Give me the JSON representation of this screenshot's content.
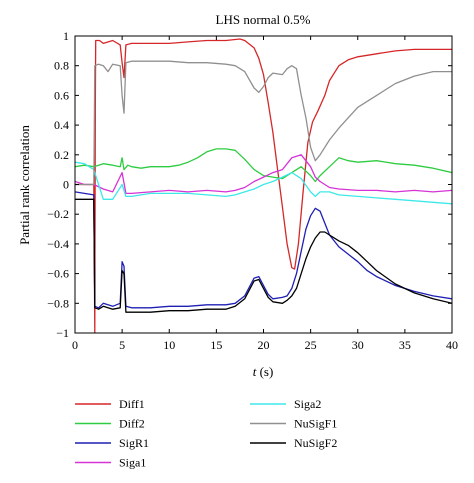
{
  "chart_data": {
    "type": "line",
    "title": "LHS normal 0.5%",
    "xlabel_italic": "t",
    "xlabel_unit": " (s)",
    "ylabel": "Partial rank correlation",
    "xlim": [
      0,
      40
    ],
    "ylim": [
      -1,
      1
    ],
    "xticks": [
      0,
      5,
      10,
      15,
      20,
      25,
      30,
      35,
      40
    ],
    "yticks": [
      -1,
      -0.8,
      -0.6,
      -0.4,
      -0.2,
      0,
      0.2,
      0.4,
      0.6,
      0.8,
      1
    ],
    "xtick_labels": [
      "0",
      "5",
      "10",
      "15",
      "20",
      "25",
      "30",
      "35",
      "40"
    ],
    "ytick_labels": [
      "−1",
      "−0.8",
      "−0.6",
      "−0.4",
      "−0.2",
      "0",
      "0.2",
      "0.4",
      "0.6",
      "0.8",
      "1"
    ],
    "grid": false,
    "legend_placement": "below",
    "series": [
      {
        "name": "Diff1",
        "color": "#d62728",
        "points": [
          [
            0,
            0
          ],
          [
            2,
            0
          ],
          [
            2.1,
            -1
          ],
          [
            2.15,
            0.5
          ],
          [
            2.2,
            0.97
          ],
          [
            2.6,
            0.97
          ],
          [
            3,
            0.95
          ],
          [
            4,
            0.97
          ],
          [
            4.8,
            0.94
          ],
          [
            5,
            0.82
          ],
          [
            5.2,
            0.72
          ],
          [
            5.4,
            0.94
          ],
          [
            6,
            0.95
          ],
          [
            8,
            0.95
          ],
          [
            10,
            0.95
          ],
          [
            12,
            0.96
          ],
          [
            14,
            0.97
          ],
          [
            16,
            0.97
          ],
          [
            17.5,
            0.98
          ],
          [
            18,
            0.97
          ],
          [
            19,
            0.92
          ],
          [
            19.5,
            0.85
          ],
          [
            20,
            0.74
          ],
          [
            20.5,
            0.55
          ],
          [
            21,
            0.35
          ],
          [
            21.5,
            0.1
          ],
          [
            22,
            -0.15
          ],
          [
            22.5,
            -0.4
          ],
          [
            23,
            -0.56
          ],
          [
            23.3,
            -0.57
          ],
          [
            23.7,
            -0.4
          ],
          [
            24.2,
            -0.05
          ],
          [
            24.7,
            0.28
          ],
          [
            25.2,
            0.42
          ],
          [
            25.8,
            0.5
          ],
          [
            26.5,
            0.6
          ],
          [
            27,
            0.7
          ],
          [
            28,
            0.8
          ],
          [
            29,
            0.84
          ],
          [
            30,
            0.86
          ],
          [
            32,
            0.88
          ],
          [
            34,
            0.9
          ],
          [
            36,
            0.91
          ],
          [
            38,
            0.91
          ],
          [
            40,
            0.91
          ]
        ]
      },
      {
        "name": "Diff2",
        "color": "#2ecc40",
        "points": [
          [
            0,
            0.12
          ],
          [
            1,
            0.13
          ],
          [
            2,
            0.12
          ],
          [
            2.5,
            0.13
          ],
          [
            3,
            0.14
          ],
          [
            4,
            0.13
          ],
          [
            4.8,
            0.12
          ],
          [
            5,
            0.18
          ],
          [
            5.2,
            0.1
          ],
          [
            5.6,
            0.13
          ],
          [
            6,
            0.12
          ],
          [
            7,
            0.11
          ],
          [
            8,
            0.12
          ],
          [
            9,
            0.12
          ],
          [
            10,
            0.12
          ],
          [
            11,
            0.13
          ],
          [
            12,
            0.15
          ],
          [
            13,
            0.18
          ],
          [
            14,
            0.22
          ],
          [
            15,
            0.24
          ],
          [
            16,
            0.24
          ],
          [
            17,
            0.23
          ],
          [
            18,
            0.17
          ],
          [
            19,
            0.1
          ],
          [
            20,
            0.06
          ],
          [
            21,
            0.05
          ],
          [
            22,
            0.04
          ],
          [
            23,
            0.08
          ],
          [
            24,
            0.12
          ],
          [
            25,
            0.06
          ],
          [
            25.5,
            0.02
          ],
          [
            26,
            0.06
          ],
          [
            27,
            0.12
          ],
          [
            28,
            0.18
          ],
          [
            29,
            0.16
          ],
          [
            30,
            0.15
          ],
          [
            32,
            0.16
          ],
          [
            34,
            0.14
          ],
          [
            36,
            0.13
          ],
          [
            38,
            0.11
          ],
          [
            40,
            0.08
          ]
        ]
      },
      {
        "name": "SigR1",
        "color": "#1f1fb4",
        "points": [
          [
            0,
            -0.05
          ],
          [
            1,
            -0.06
          ],
          [
            2,
            -0.07
          ],
          [
            2.1,
            -0.82
          ],
          [
            2.5,
            -0.83
          ],
          [
            3,
            -0.8
          ],
          [
            4,
            -0.82
          ],
          [
            4.8,
            -0.8
          ],
          [
            5,
            -0.52
          ],
          [
            5.2,
            -0.55
          ],
          [
            5.4,
            -0.82
          ],
          [
            6,
            -0.83
          ],
          [
            8,
            -0.83
          ],
          [
            10,
            -0.82
          ],
          [
            12,
            -0.82
          ],
          [
            14,
            -0.81
          ],
          [
            16,
            -0.81
          ],
          [
            17,
            -0.8
          ],
          [
            18,
            -0.75
          ],
          [
            19,
            -0.63
          ],
          [
            19.5,
            -0.62
          ],
          [
            20,
            -0.68
          ],
          [
            20.5,
            -0.74
          ],
          [
            21,
            -0.77
          ],
          [
            22,
            -0.76
          ],
          [
            22.5,
            -0.75
          ],
          [
            23,
            -0.7
          ],
          [
            23.5,
            -0.6
          ],
          [
            24,
            -0.45
          ],
          [
            24.5,
            -0.3
          ],
          [
            25,
            -0.21
          ],
          [
            25.5,
            -0.16
          ],
          [
            26,
            -0.18
          ],
          [
            26.5,
            -0.26
          ],
          [
            27,
            -0.34
          ],
          [
            28,
            -0.42
          ],
          [
            29,
            -0.47
          ],
          [
            30,
            -0.52
          ],
          [
            31,
            -0.58
          ],
          [
            32,
            -0.62
          ],
          [
            34,
            -0.68
          ],
          [
            36,
            -0.72
          ],
          [
            38,
            -0.75
          ],
          [
            40,
            -0.77
          ]
        ]
      },
      {
        "name": "Siga1",
        "color": "#d633d6",
        "points": [
          [
            0,
            0.02
          ],
          [
            1,
            0.0
          ],
          [
            2,
            0.0
          ],
          [
            3,
            -0.03
          ],
          [
            4,
            -0.05
          ],
          [
            5,
            0.08
          ],
          [
            5.4,
            -0.06
          ],
          [
            6,
            -0.06
          ],
          [
            8,
            -0.05
          ],
          [
            10,
            -0.04
          ],
          [
            12,
            -0.05
          ],
          [
            14,
            -0.04
          ],
          [
            16,
            -0.05
          ],
          [
            17,
            -0.04
          ],
          [
            18,
            -0.02
          ],
          [
            19,
            0.02
          ],
          [
            20,
            0.05
          ],
          [
            21,
            0.08
          ],
          [
            22,
            0.1
          ],
          [
            23,
            0.18
          ],
          [
            24,
            0.2
          ],
          [
            25,
            0.12
          ],
          [
            25.5,
            0.05
          ],
          [
            26,
            0.02
          ],
          [
            27,
            -0.02
          ],
          [
            28,
            -0.03
          ],
          [
            30,
            -0.04
          ],
          [
            32,
            -0.04
          ],
          [
            34,
            -0.05
          ],
          [
            36,
            -0.04
          ],
          [
            38,
            -0.05
          ],
          [
            40,
            -0.04
          ]
        ]
      },
      {
        "name": "Siga2",
        "color": "#3ee8e8",
        "points": [
          [
            0,
            0.15
          ],
          [
            1,
            0.14
          ],
          [
            2,
            0.1
          ],
          [
            3,
            -0.1
          ],
          [
            4,
            -0.1
          ],
          [
            5,
            0.0
          ],
          [
            5.4,
            -0.08
          ],
          [
            6,
            -0.08
          ],
          [
            8,
            -0.06
          ],
          [
            10,
            -0.06
          ],
          [
            12,
            -0.06
          ],
          [
            14,
            -0.07
          ],
          [
            16,
            -0.08
          ],
          [
            17,
            -0.07
          ],
          [
            18,
            -0.05
          ],
          [
            19,
            -0.03
          ],
          [
            20,
            0.0
          ],
          [
            21,
            0.02
          ],
          [
            22,
            0.05
          ],
          [
            23,
            0.08
          ],
          [
            24,
            0.04
          ],
          [
            25,
            -0.05
          ],
          [
            25.5,
            -0.08
          ],
          [
            26,
            -0.05
          ],
          [
            27,
            -0.05
          ],
          [
            28,
            -0.07
          ],
          [
            30,
            -0.08
          ],
          [
            32,
            -0.09
          ],
          [
            34,
            -0.1
          ],
          [
            36,
            -0.11
          ],
          [
            38,
            -0.12
          ],
          [
            40,
            -0.13
          ]
        ]
      },
      {
        "name": "NuSigF1",
        "color": "#909090",
        "points": [
          [
            0,
            0.0
          ],
          [
            2,
            0.0
          ],
          [
            2.1,
            0.8
          ],
          [
            2.5,
            0.81
          ],
          [
            3,
            0.8
          ],
          [
            3.5,
            0.76
          ],
          [
            4,
            0.81
          ],
          [
            4.8,
            0.8
          ],
          [
            5,
            0.6
          ],
          [
            5.2,
            0.48
          ],
          [
            5.4,
            0.82
          ],
          [
            6,
            0.83
          ],
          [
            8,
            0.83
          ],
          [
            10,
            0.83
          ],
          [
            12,
            0.82
          ],
          [
            14,
            0.82
          ],
          [
            16,
            0.81
          ],
          [
            17,
            0.8
          ],
          [
            18,
            0.76
          ],
          [
            19,
            0.65
          ],
          [
            19.5,
            0.62
          ],
          [
            20,
            0.66
          ],
          [
            20.5,
            0.72
          ],
          [
            21,
            0.75
          ],
          [
            22,
            0.74
          ],
          [
            22.5,
            0.78
          ],
          [
            23,
            0.8
          ],
          [
            23.5,
            0.78
          ],
          [
            24,
            0.6
          ],
          [
            24.5,
            0.45
          ],
          [
            25,
            0.25
          ],
          [
            25.5,
            0.16
          ],
          [
            26,
            0.2
          ],
          [
            27,
            0.3
          ],
          [
            28,
            0.38
          ],
          [
            29,
            0.45
          ],
          [
            30,
            0.52
          ],
          [
            32,
            0.6
          ],
          [
            34,
            0.68
          ],
          [
            36,
            0.73
          ],
          [
            38,
            0.76
          ],
          [
            40,
            0.76
          ]
        ]
      },
      {
        "name": "NuSigF2",
        "color": "#000000",
        "points": [
          [
            0,
            -0.1
          ],
          [
            1,
            -0.1
          ],
          [
            2,
            -0.1
          ],
          [
            2.1,
            -0.83
          ],
          [
            2.5,
            -0.84
          ],
          [
            3,
            -0.82
          ],
          [
            4,
            -0.84
          ],
          [
            4.8,
            -0.83
          ],
          [
            5,
            -0.58
          ],
          [
            5.2,
            -0.6
          ],
          [
            5.4,
            -0.86
          ],
          [
            6,
            -0.86
          ],
          [
            8,
            -0.86
          ],
          [
            10,
            -0.85
          ],
          [
            12,
            -0.85
          ],
          [
            14,
            -0.84
          ],
          [
            16,
            -0.84
          ],
          [
            17,
            -0.82
          ],
          [
            18,
            -0.77
          ],
          [
            19,
            -0.65
          ],
          [
            19.5,
            -0.64
          ],
          [
            20,
            -0.7
          ],
          [
            20.5,
            -0.76
          ],
          [
            21,
            -0.79
          ],
          [
            22,
            -0.8
          ],
          [
            22.5,
            -0.78
          ],
          [
            23,
            -0.75
          ],
          [
            23.5,
            -0.7
          ],
          [
            24,
            -0.6
          ],
          [
            24.5,
            -0.5
          ],
          [
            25,
            -0.42
          ],
          [
            25.5,
            -0.36
          ],
          [
            26,
            -0.32
          ],
          [
            26.5,
            -0.32
          ],
          [
            27,
            -0.34
          ],
          [
            28,
            -0.38
          ],
          [
            29,
            -0.41
          ],
          [
            30,
            -0.46
          ],
          [
            31,
            -0.52
          ],
          [
            32,
            -0.58
          ],
          [
            34,
            -0.67
          ],
          [
            36,
            -0.73
          ],
          [
            38,
            -0.77
          ],
          [
            40,
            -0.8
          ]
        ]
      }
    ]
  }
}
